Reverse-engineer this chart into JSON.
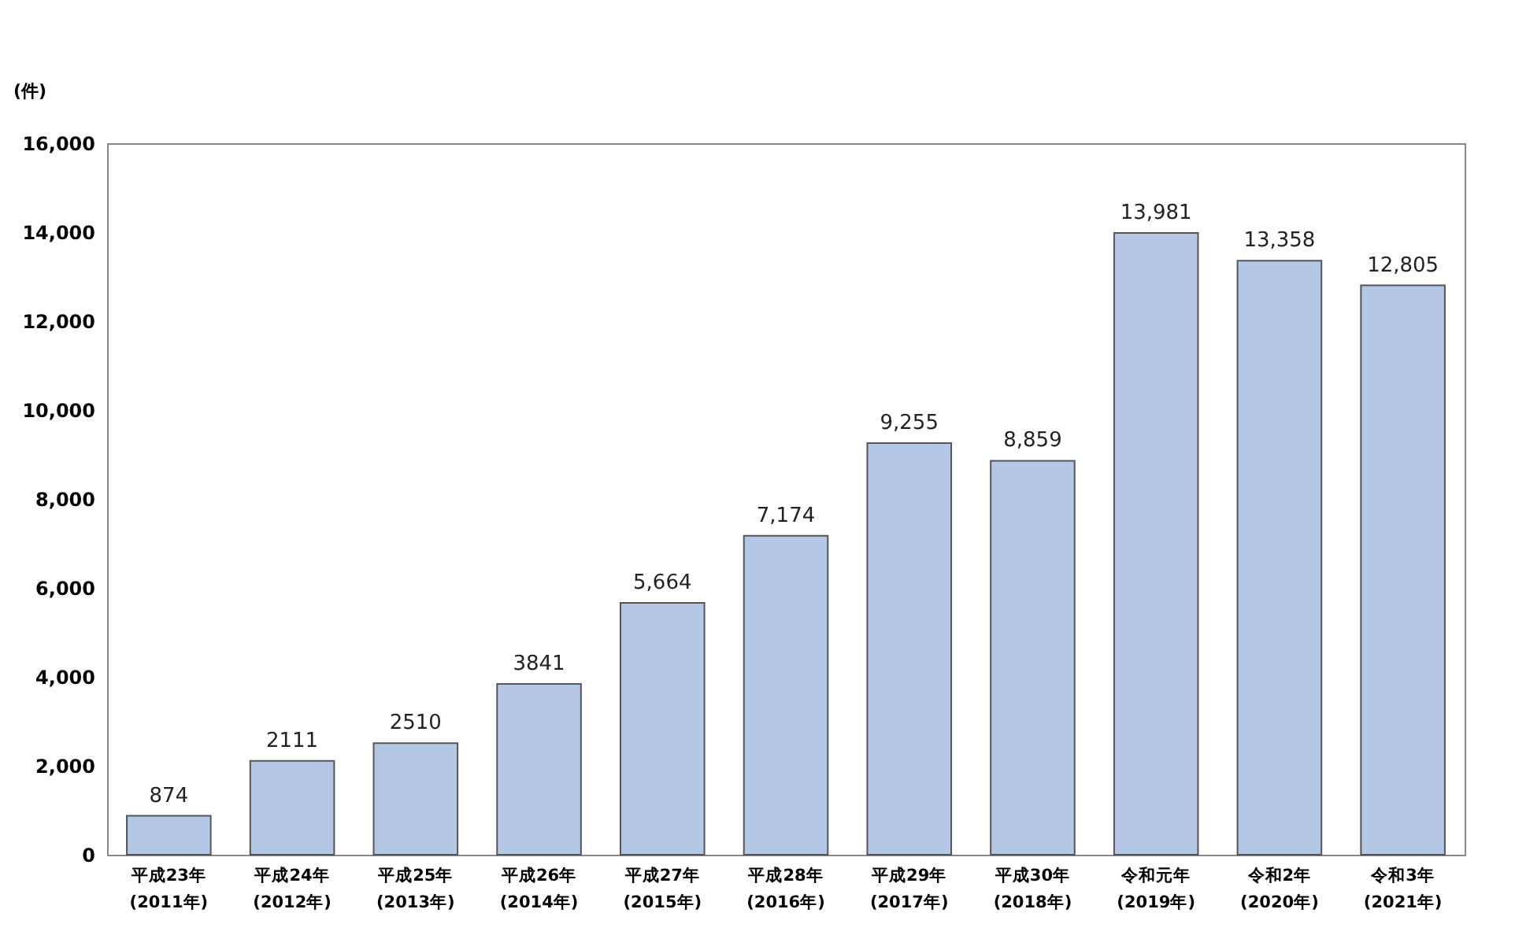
{
  "chart_data": {
    "type": "bar",
    "ylabel": "(件)",
    "categories": [
      "平成23年\n(2011年)",
      "平成24年\n(2012年)",
      "平成25年\n(2013年)",
      "平成26年\n(2014年)",
      "平成27年\n(2015年)",
      "平成28年\n(2016年)",
      "平成29年\n(2017年)",
      "平成30年\n(2018年)",
      "令和元年\n(2019年)",
      "令和2年\n(2020年)",
      "令和3年\n(2021年)"
    ],
    "values": [
      874,
      2111,
      2510,
      3841,
      5664,
      7174,
      9255,
      8859,
      13981,
      13358,
      12805
    ],
    "value_labels": [
      "874",
      "2111",
      "2510",
      "3841",
      "5,664",
      "7,174",
      "9,255",
      "8,859",
      "13,981",
      "13,358",
      "12,805"
    ],
    "color": "#b4c7e7",
    "ylim": [
      0,
      16000
    ],
    "yticks": [
      {
        "value": 0,
        "label": "0"
      },
      {
        "value": 2000,
        "label": "2,000"
      },
      {
        "value": 4000,
        "label": "4,000"
      },
      {
        "value": 6000,
        "label": "6,000"
      },
      {
        "value": 8000,
        "label": "8,000"
      },
      {
        "value": 10000,
        "label": "10,000"
      },
      {
        "value": 12000,
        "label": "12,000"
      },
      {
        "value": 14000,
        "label": "14,000"
      },
      {
        "value": 16000,
        "label": "16,000"
      }
    ],
    "grid": false
  }
}
